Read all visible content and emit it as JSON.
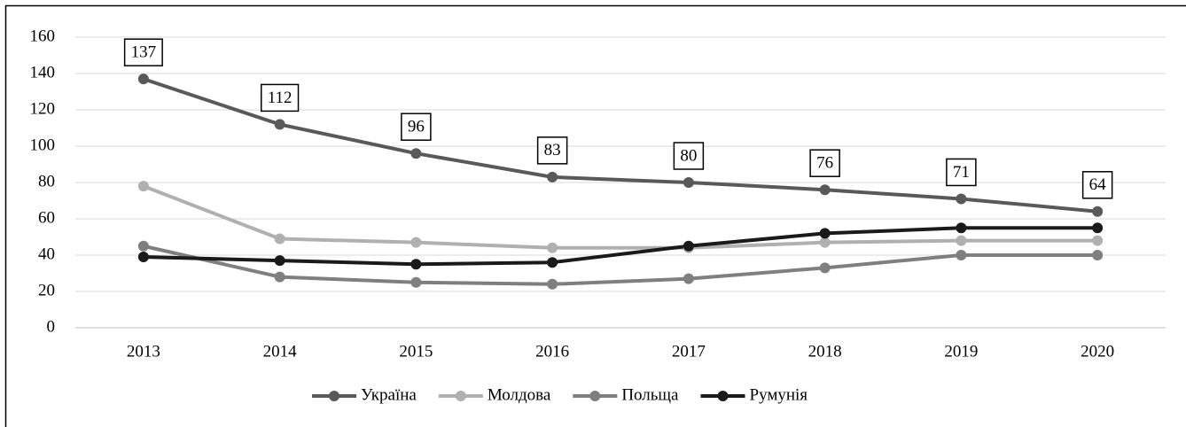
{
  "chart_data": {
    "type": "line",
    "categories": [
      "2013",
      "2014",
      "2015",
      "2016",
      "2017",
      "2018",
      "2019",
      "2020"
    ],
    "series": [
      {
        "name": "Україна",
        "color": "#595959",
        "values": [
          137,
          112,
          96,
          83,
          80,
          76,
          71,
          64
        ]
      },
      {
        "name": "Молдова",
        "color": "#b0b0b0",
        "values": [
          78,
          49,
          47,
          44,
          44,
          47,
          48,
          48
        ]
      },
      {
        "name": "Польща",
        "color": "#7f7f7f",
        "values": [
          45,
          28,
          25,
          24,
          27,
          33,
          40,
          40
        ]
      },
      {
        "name": "Румунія",
        "color": "#1a1a1a",
        "values": [
          39,
          37,
          35,
          36,
          45,
          52,
          55,
          55
        ]
      }
    ],
    "labeled_series": 0,
    "ylim": [
      0,
      160
    ],
    "yticks": [
      0,
      20,
      40,
      60,
      80,
      100,
      120,
      140,
      160
    ],
    "grid": true,
    "legend": "bottom"
  }
}
